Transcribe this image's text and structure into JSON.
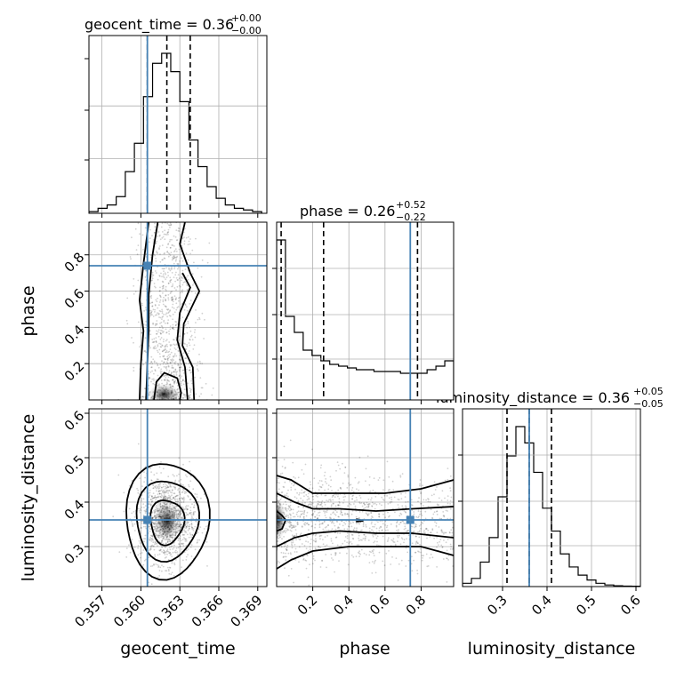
{
  "chart_data": {
    "type": "corner",
    "parameters": [
      {
        "name": "geocent_time",
        "xlabel": "geocent_time",
        "range": [
          0.356,
          0.3697
        ],
        "ticks": [
          0.357,
          0.36,
          0.363,
          0.366,
          0.369
        ],
        "tick_labels": [
          "0.357",
          "0.360",
          "0.363",
          "0.366",
          "0.369"
        ],
        "injection": 0.3605,
        "title": {
          "main": "geocent_time = 0.36",
          "sup": "+0.00",
          "sub": "−0.00"
        },
        "quantiles": [
          0.3605,
          0.362,
          0.3638
        ],
        "hist": {
          "bins": [
            0.356,
            0.3567,
            0.3574,
            0.3581,
            0.3588,
            0.3595,
            0.3602,
            0.3609,
            0.3616,
            0.3623,
            0.363,
            0.3637,
            0.3644,
            0.3651,
            0.3658,
            0.3665,
            0.3672,
            0.3679,
            0.3686,
            0.3693
          ],
          "counts": [
            1,
            3,
            5,
            10,
            25,
            42,
            70,
            90,
            96,
            85,
            67,
            44,
            28,
            16,
            9,
            5,
            3,
            2,
            1
          ]
        }
      },
      {
        "name": "phase",
        "xlabel": "phase",
        "ylabel": "phase",
        "range": [
          0.0,
          0.98
        ],
        "ticks": [
          0.2,
          0.4,
          0.6,
          0.8
        ],
        "tick_labels": [
          "0.2",
          "0.4",
          "0.6",
          "0.8"
        ],
        "injection": 0.74,
        "title": {
          "main": "phase = 0.26",
          "sup": "+0.52",
          "sub": "−0.22"
        },
        "quantiles": [
          0.025,
          0.26,
          0.78
        ],
        "hist": {
          "bins": [
            0.0,
            0.049,
            0.098,
            0.147,
            0.196,
            0.245,
            0.294,
            0.343,
            0.392,
            0.441,
            0.49,
            0.539,
            0.588,
            0.637,
            0.686,
            0.735,
            0.784,
            0.833,
            0.882,
            0.931,
            0.98
          ],
          "counts": [
            90,
            47,
            38,
            28,
            25,
            22,
            20,
            19,
            18,
            17,
            17,
            16,
            16,
            16,
            15,
            15,
            15,
            17,
            19,
            22
          ]
        }
      },
      {
        "name": "luminosity_distance",
        "xlabel": "luminosity_distance",
        "ylabel": "luminosity_distance",
        "range": [
          0.21,
          0.61
        ],
        "ticks": [
          0.3,
          0.4,
          0.5,
          0.6
        ],
        "tick_labels": [
          "0.3",
          "0.4",
          "0.5",
          "0.6"
        ],
        "injection": 0.36,
        "title": {
          "main": "luminosity_distance = 0.36",
          "sup": "+0.05",
          "sub": "−0.05"
        },
        "quantiles": [
          0.31,
          0.36,
          0.41
        ],
        "hist": {
          "bins": [
            0.21,
            0.23,
            0.25,
            0.27,
            0.29,
            0.31,
            0.33,
            0.35,
            0.37,
            0.39,
            0.41,
            0.43,
            0.45,
            0.47,
            0.49,
            0.51,
            0.53,
            0.55,
            0.57,
            0.59,
            0.61
          ],
          "counts": [
            2,
            5,
            15,
            30,
            55,
            80,
            98,
            88,
            70,
            48,
            34,
            20,
            12,
            7,
            4,
            2,
            1,
            0.5,
            0.3,
            0.2
          ]
        }
      }
    ],
    "yticks": {
      "phase_row": {
        "ticks": [
          0.2,
          0.4,
          0.6,
          0.8
        ],
        "labels": [
          "0.2",
          "0.4",
          "0.6",
          "0.8"
        ]
      },
      "distance_row": {
        "ticks": [
          0.3,
          0.4,
          0.5,
          0.6
        ],
        "labels": [
          "0.3",
          "0.4",
          "0.5",
          "0.6"
        ]
      }
    },
    "injection_color": "#4682b4",
    "hist_color": "#000000",
    "grid": true
  }
}
